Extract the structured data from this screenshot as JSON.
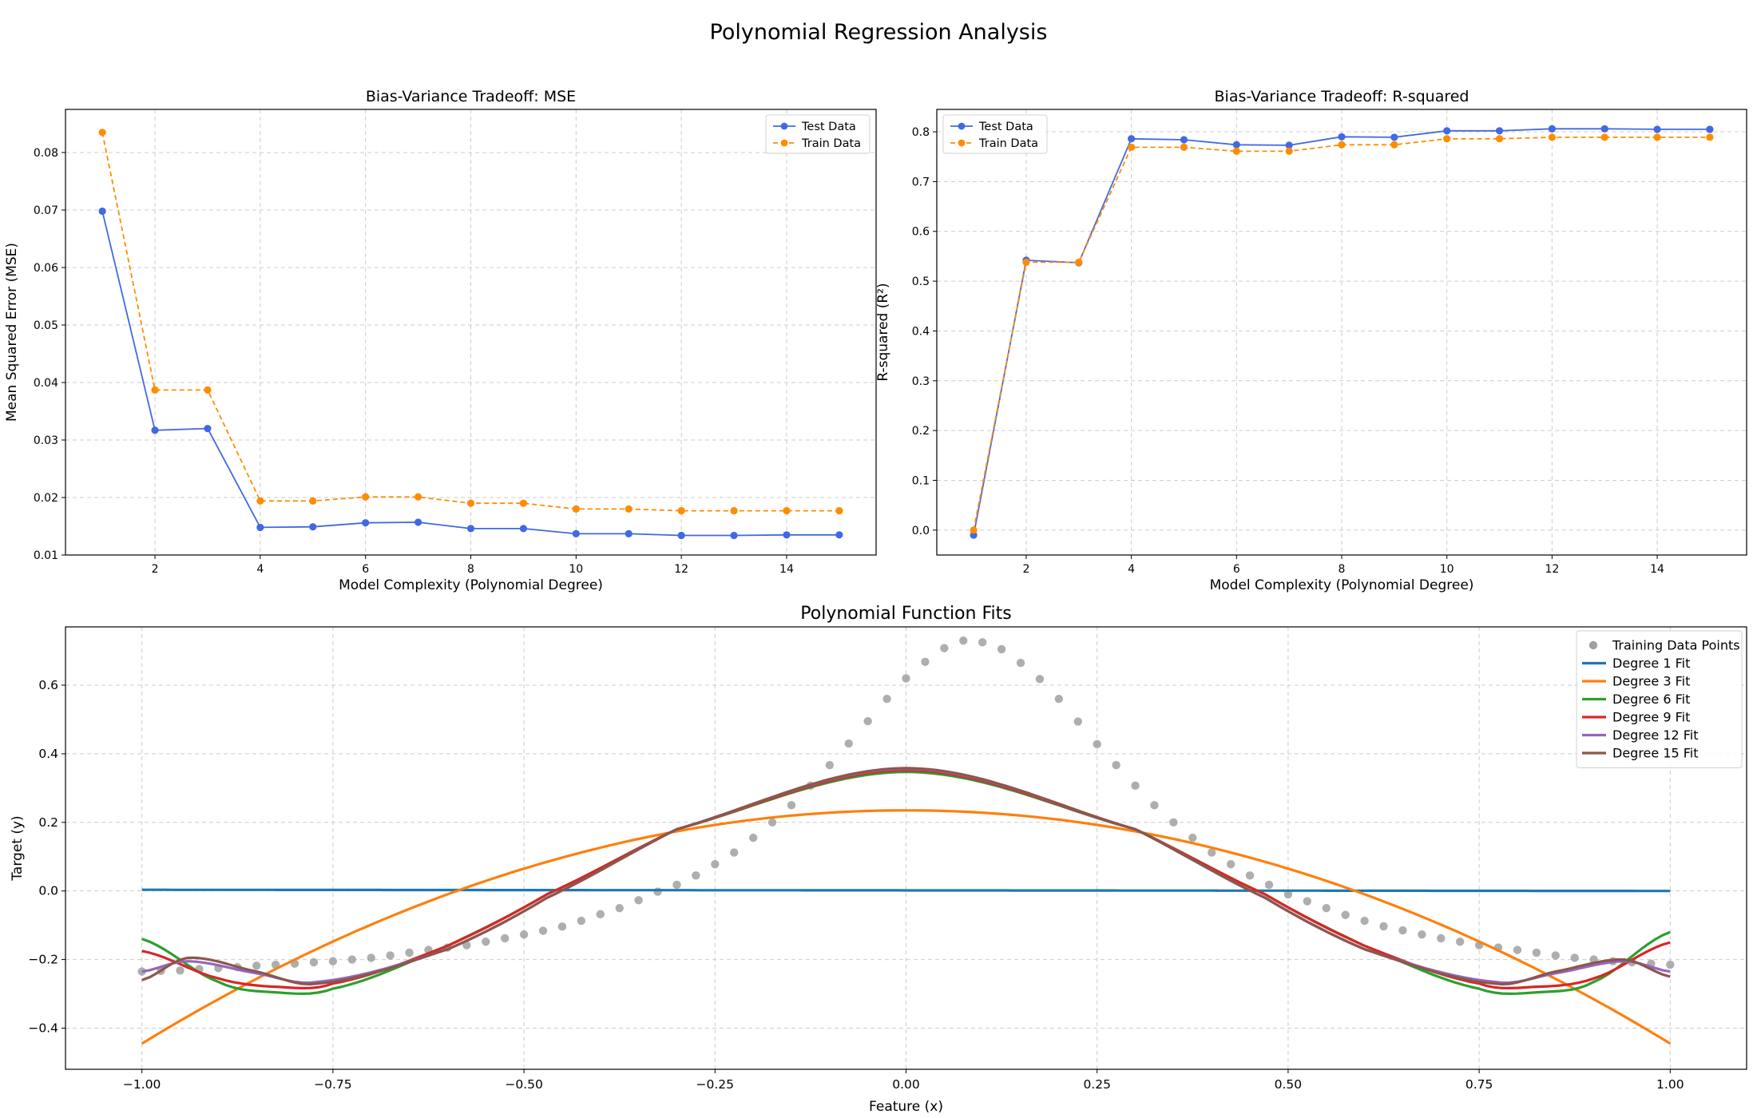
{
  "figure": {
    "suptitle": "Polynomial Regression Analysis"
  },
  "chart_data": [
    {
      "type": "line",
      "title": "Bias-Variance Tradeoff: MSE",
      "xlabel": "Model Complexity (Polynomial Degree)",
      "ylabel": "Mean Squared Error (MSE)",
      "xlim": [
        0.3,
        15.7
      ],
      "ylim": [
        0.01,
        0.0875
      ],
      "xticks": [
        2,
        4,
        6,
        8,
        10,
        12,
        14
      ],
      "yticks": [
        0.01,
        0.02,
        0.03,
        0.04,
        0.05,
        0.06,
        0.07,
        0.08
      ],
      "grid": true,
      "legend_position": "upper right",
      "x": [
        1,
        2,
        3,
        4,
        5,
        6,
        7,
        8,
        9,
        10,
        11,
        12,
        13,
        14,
        15
      ],
      "series": [
        {
          "name": "Test Data",
          "color": "#4169e1",
          "style": "solid",
          "marker": "circle",
          "values": [
            0.0698,
            0.0317,
            0.032,
            0.0148,
            0.0149,
            0.0156,
            0.0157,
            0.0146,
            0.0146,
            0.0137,
            0.0137,
            0.0134,
            0.0134,
            0.0135,
            0.0135
          ]
        },
        {
          "name": "Train Data",
          "color": "#ff8c00",
          "style": "dashed",
          "marker": "circle",
          "values": [
            0.0835,
            0.0387,
            0.0387,
            0.0194,
            0.0194,
            0.0201,
            0.0201,
            0.019,
            0.019,
            0.018,
            0.018,
            0.0177,
            0.0177,
            0.0177,
            0.0177
          ]
        }
      ]
    },
    {
      "type": "line",
      "title": "Bias-Variance Tradeoff: R-squared",
      "xlabel": "Model Complexity (Polynomial Degree)",
      "ylabel": "R-squared (R²)",
      "xlim": [
        0.3,
        15.7
      ],
      "ylim": [
        -0.05,
        0.845
      ],
      "xticks": [
        2,
        4,
        6,
        8,
        10,
        12,
        14
      ],
      "yticks": [
        0.0,
        0.1,
        0.2,
        0.3,
        0.4,
        0.5,
        0.6,
        0.7,
        0.8
      ],
      "grid": true,
      "legend_position": "upper left",
      "x": [
        1,
        2,
        3,
        4,
        5,
        6,
        7,
        8,
        9,
        10,
        11,
        12,
        13,
        14,
        15
      ],
      "series": [
        {
          "name": "Test Data",
          "color": "#4169e1",
          "style": "solid",
          "marker": "circle",
          "values": [
            -0.01,
            0.542,
            0.537,
            0.786,
            0.784,
            0.774,
            0.773,
            0.79,
            0.789,
            0.802,
            0.802,
            0.806,
            0.806,
            0.805,
            0.805
          ]
        },
        {
          "name": "Train Data",
          "color": "#ff8c00",
          "style": "dashed",
          "marker": "circle",
          "values": [
            0.0,
            0.538,
            0.538,
            0.769,
            0.769,
            0.761,
            0.761,
            0.774,
            0.774,
            0.786,
            0.786,
            0.789,
            0.789,
            0.789,
            0.789
          ]
        }
      ]
    },
    {
      "type": "scatter",
      "title": "Polynomial Function Fits",
      "xlabel": "Feature (x)",
      "ylabel": "Target (y)",
      "xlim": [
        -1.1,
        1.1
      ],
      "ylim": [
        -0.52,
        0.77
      ],
      "xticks": [
        -1.0,
        -0.75,
        -0.5,
        -0.25,
        0.0,
        0.25,
        0.5,
        0.75,
        1.0
      ],
      "xtick_labels": [
        "−1.00",
        "−0.75",
        "−0.50",
        "−0.25",
        "0.00",
        "0.25",
        "0.50",
        "0.75",
        "1.00"
      ],
      "yticks": [
        -0.4,
        -0.2,
        0.0,
        0.2,
        0.4,
        0.6
      ],
      "ytick_labels": [
        "−0.4",
        "−0.2",
        "0.0",
        "0.2",
        "0.4",
        "0.6"
      ],
      "grid": true,
      "legend_position": "upper right",
      "scatter": {
        "name": "Training Data Points",
        "color": "#a0a0a0",
        "x": [
          -1.0,
          -0.975,
          -0.95,
          -0.925,
          -0.9,
          -0.875,
          -0.85,
          -0.825,
          -0.8,
          -0.775,
          -0.75,
          -0.725,
          -0.7,
          -0.675,
          -0.65,
          -0.625,
          -0.6,
          -0.575,
          -0.55,
          -0.525,
          -0.5,
          -0.475,
          -0.45,
          -0.425,
          -0.4,
          -0.375,
          -0.35,
          -0.325,
          -0.3,
          -0.275,
          -0.25,
          -0.225,
          -0.2,
          -0.175,
          -0.15,
          -0.125,
          -0.1,
          -0.075,
          -0.05,
          -0.025,
          0.0,
          0.025,
          0.05,
          0.075,
          0.1,
          0.125,
          0.15,
          0.175,
          0.2,
          0.225,
          0.25,
          0.275,
          0.3,
          0.325,
          0.35,
          0.375,
          0.4,
          0.425,
          0.45,
          0.475,
          0.5,
          0.525,
          0.55,
          0.575,
          0.6,
          0.625,
          0.65,
          0.675,
          0.7,
          0.725,
          0.75,
          0.775,
          0.8,
          0.825,
          0.85,
          0.875,
          0.9,
          0.925,
          0.95,
          0.975,
          1.0
        ],
        "y": [
          -0.235,
          -0.233,
          -0.232,
          -0.228,
          -0.225,
          -0.222,
          -0.218,
          -0.215,
          -0.212,
          -0.208,
          -0.205,
          -0.2,
          -0.195,
          -0.188,
          -0.18,
          -0.172,
          -0.165,
          -0.158,
          -0.148,
          -0.138,
          -0.127,
          -0.116,
          -0.104,
          -0.087,
          -0.068,
          -0.05,
          -0.027,
          -0.002,
          0.018,
          0.045,
          0.078,
          0.112,
          0.155,
          0.2,
          0.25,
          0.307,
          0.367,
          0.43,
          0.495,
          0.56,
          0.62,
          0.668,
          0.708,
          0.73,
          0.725,
          0.705,
          0.665,
          0.618,
          0.56,
          0.494,
          0.428,
          0.367,
          0.307,
          0.25,
          0.2,
          0.155,
          0.112,
          0.078,
          0.045,
          0.018,
          -0.01,
          -0.03,
          -0.05,
          -0.07,
          -0.087,
          -0.103,
          -0.115,
          -0.127,
          -0.138,
          -0.148,
          -0.158,
          -0.165,
          -0.172,
          -0.18,
          -0.188,
          -0.195,
          -0.2,
          -0.205,
          -0.208,
          -0.212,
          -0.215
        ]
      },
      "series": [
        {
          "name": "Degree 1 Fit",
          "color": "#1f77b4",
          "equation": "0.0017 - 0.0017x"
        },
        {
          "name": "Degree 3 Fit",
          "color": "#ff7f0e",
          "equation": "0.235 - 0.68x^2"
        },
        {
          "name": "Degree 6 Fit",
          "color": "#2ca02c",
          "x": [
            -1.0,
            -0.9,
            -0.83,
            -0.75,
            -0.6,
            -0.47,
            -0.3,
            0.0,
            0.3,
            0.47,
            0.6,
            0.75,
            0.83,
            0.9,
            1.0
          ],
          "y": [
            -0.14,
            -0.265,
            -0.295,
            -0.285,
            -0.16,
            -0.01,
            0.18,
            0.347,
            0.18,
            -0.01,
            -0.16,
            -0.285,
            -0.295,
            -0.265,
            -0.12
          ]
        },
        {
          "name": "Degree 9 Fit",
          "color": "#d62728",
          "x": [
            -1.0,
            -0.9,
            -0.82,
            -0.75,
            -0.6,
            -0.47,
            -0.3,
            0.0,
            0.3,
            0.47,
            0.6,
            0.75,
            0.82,
            0.9,
            1.0
          ],
          "y": [
            -0.175,
            -0.255,
            -0.28,
            -0.27,
            -0.16,
            -0.01,
            0.18,
            0.352,
            0.18,
            -0.01,
            -0.16,
            -0.27,
            -0.28,
            -0.255,
            -0.15
          ]
        },
        {
          "name": "Degree 12 Fit",
          "color": "#9467bd",
          "x": [
            -1.0,
            -0.94,
            -0.85,
            -0.77,
            -0.6,
            -0.47,
            -0.3,
            0.0,
            0.3,
            0.47,
            0.6,
            0.77,
            0.85,
            0.94,
            1.0
          ],
          "y": [
            -0.235,
            -0.205,
            -0.24,
            -0.265,
            -0.17,
            -0.02,
            0.18,
            0.356,
            0.18,
            -0.02,
            -0.17,
            -0.265,
            -0.24,
            -0.205,
            -0.235
          ]
        },
        {
          "name": "Degree 15 Fit",
          "color": "#8c564b",
          "x": [
            -1.0,
            -0.94,
            -0.85,
            -0.77,
            -0.6,
            -0.47,
            -0.3,
            0.0,
            0.3,
            0.47,
            0.6,
            0.77,
            0.85,
            0.94,
            1.0
          ],
          "y": [
            -0.26,
            -0.195,
            -0.235,
            -0.27,
            -0.17,
            -0.02,
            0.18,
            0.358,
            0.18,
            -0.02,
            -0.17,
            -0.27,
            -0.235,
            -0.2,
            -0.25
          ]
        }
      ]
    }
  ]
}
